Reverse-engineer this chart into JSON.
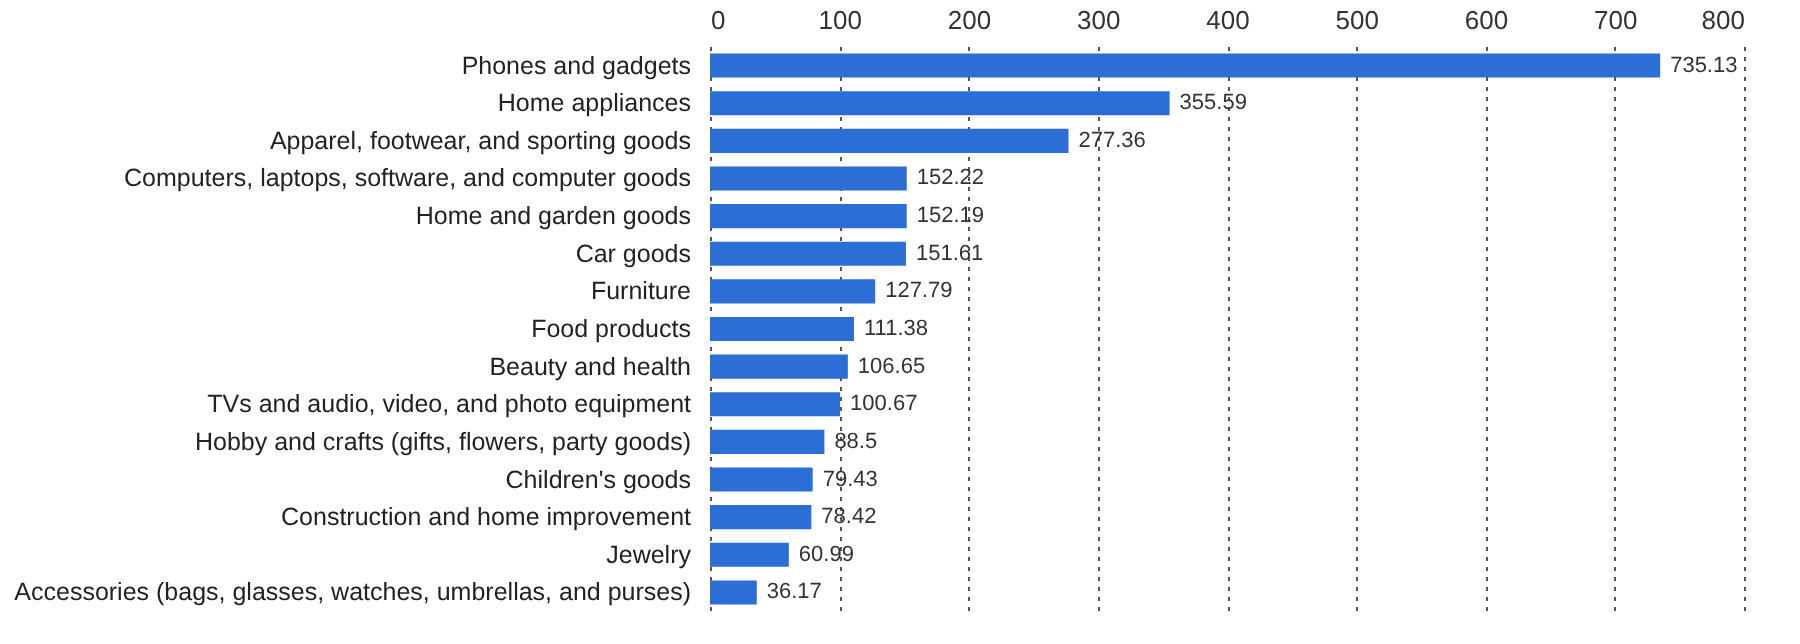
{
  "chart_data": {
    "type": "bar",
    "orientation": "horizontal",
    "categories": [
      "Phones and gadgets",
      "Home appliances",
      "Apparel, footwear, and sporting goods",
      "Computers, laptops, software, and computer goods",
      "Home and garden goods",
      "Car goods",
      "Furniture",
      "Food products",
      "Beauty and health",
      "TVs and audio, video, and photo equipment",
      "Hobby and crafts (gifts, flowers, party goods)",
      "Children's goods",
      "Construction and home improvement",
      "Jewelry",
      "Accessories (bags, glasses, watches, umbrellas, and purses)"
    ],
    "values": [
      735.13,
      355.59,
      277.36,
      152.22,
      152.19,
      151.61,
      127.79,
      111.38,
      106.65,
      100.67,
      88.5,
      79.43,
      78.42,
      60.99,
      36.17
    ],
    "color": "#2a6ed6",
    "xlim": [
      0,
      800
    ],
    "xticks": [
      0,
      100,
      200,
      300,
      400,
      500,
      600,
      700,
      800
    ],
    "grid": "x",
    "data_labels": true
  }
}
